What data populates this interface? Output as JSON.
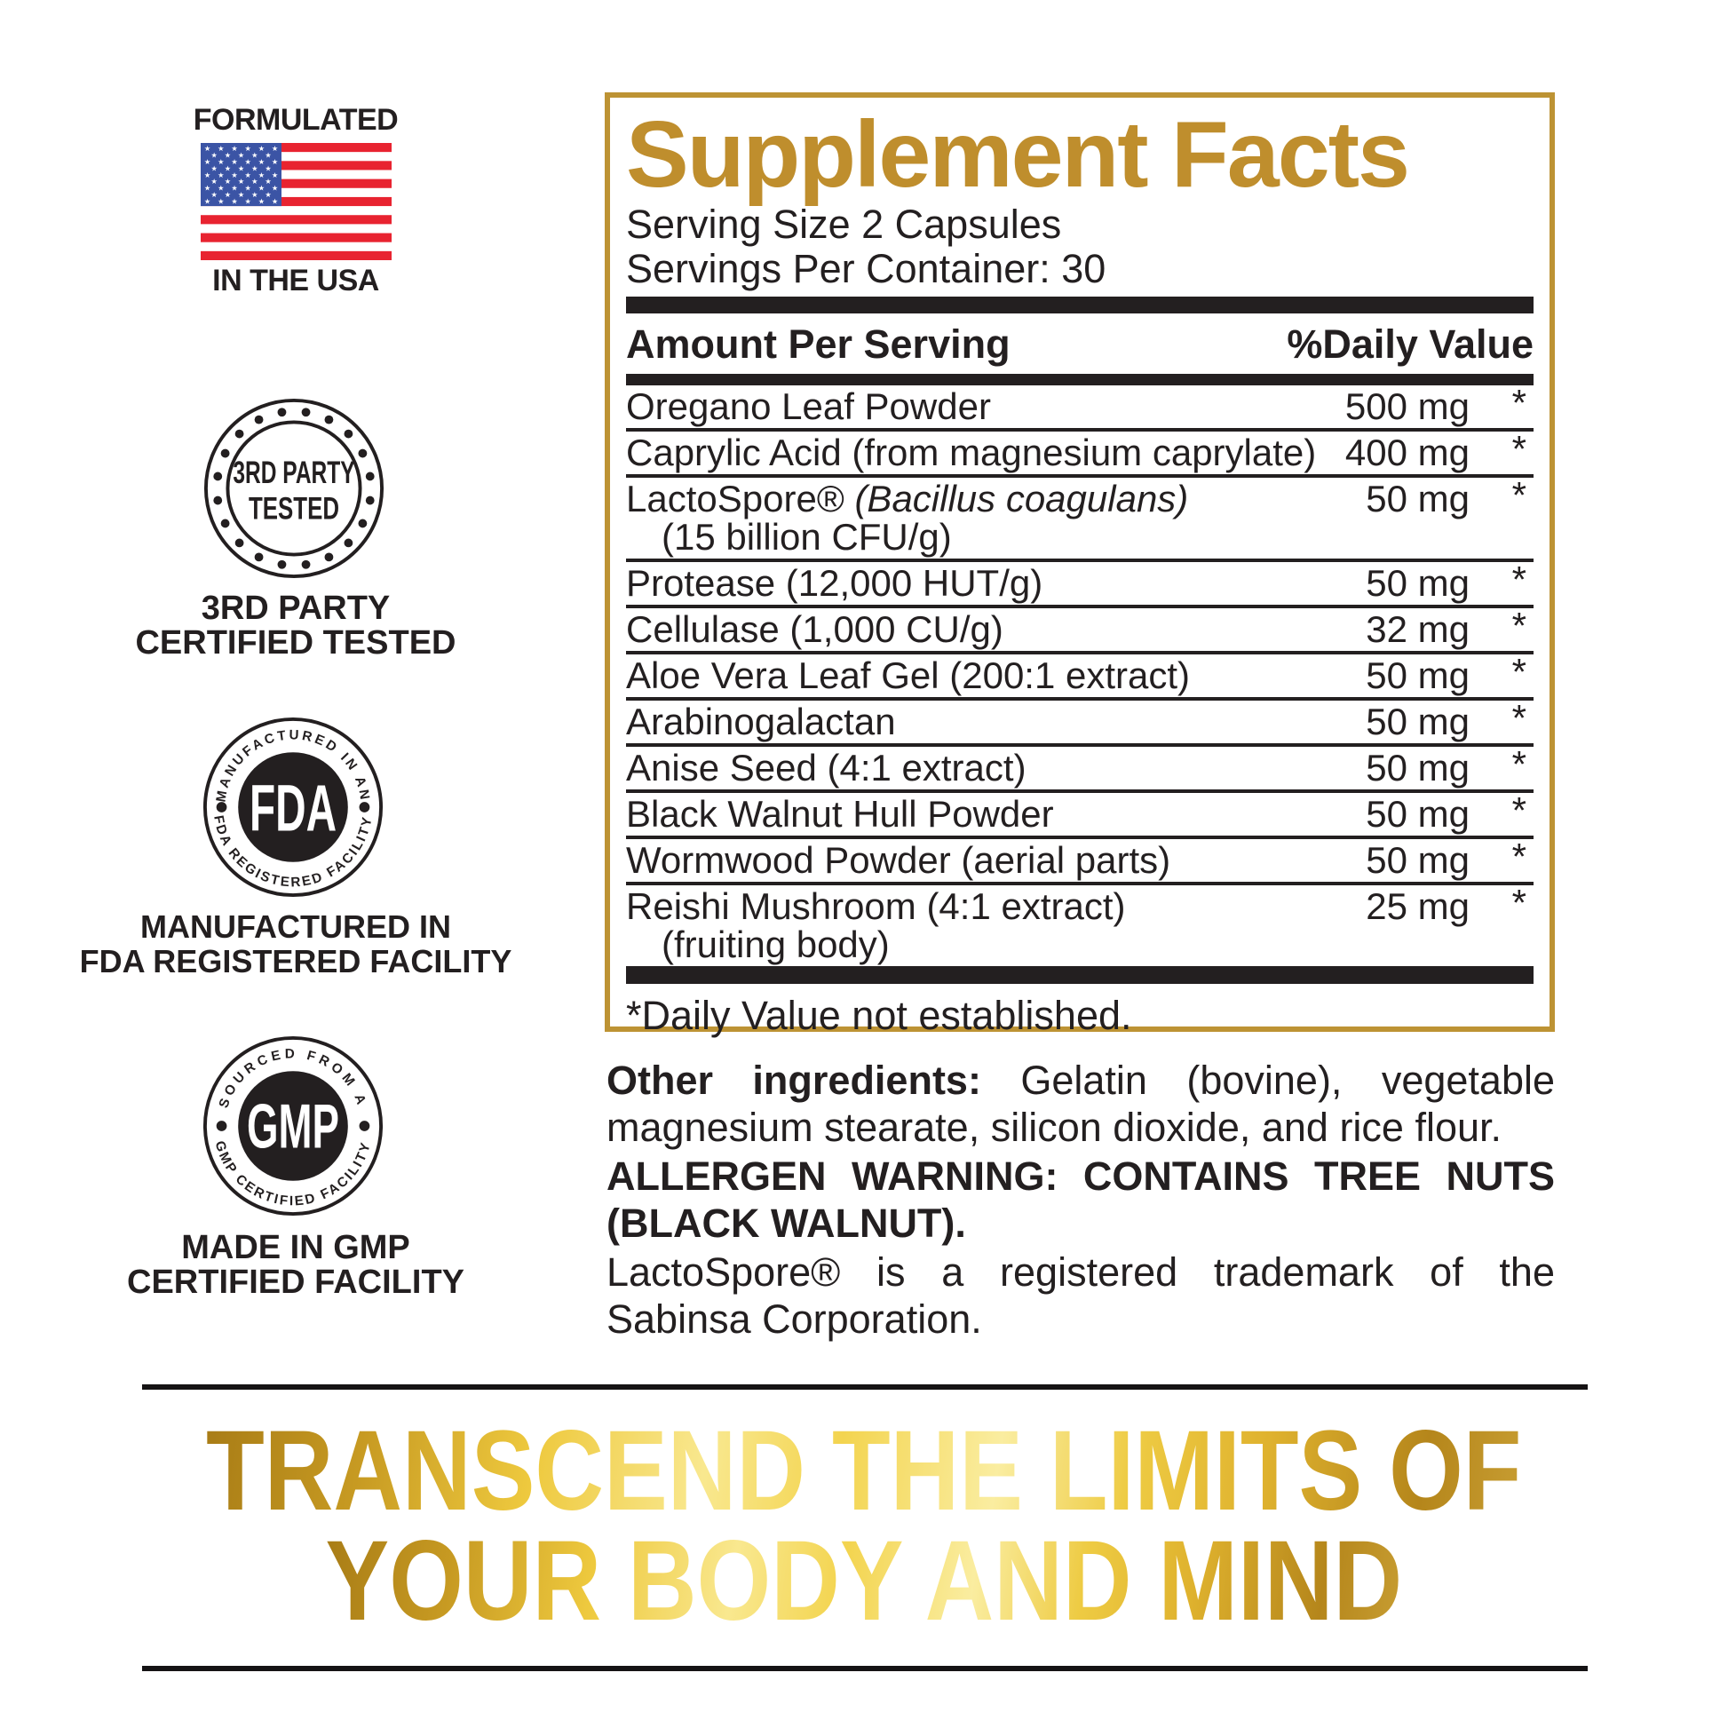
{
  "badges": {
    "flag": {
      "top": "FORMULATED",
      "bottom": "IN THE USA"
    },
    "tested": {
      "inner_line1": "3RD PARTY",
      "inner_line2": "TESTED",
      "caption_line1": "3RD PARTY",
      "caption_line2": "CERTIFIED TESTED"
    },
    "fda": {
      "arc_top": "MANUFACTURED IN AN",
      "center": "FDA",
      "arc_bottom": "FDA REGISTERED FACILITY",
      "caption_line1": "MANUFACTURED IN",
      "caption_line2": "FDA REGISTERED FACILITY"
    },
    "gmp": {
      "arc_top": "SOURCED FROM A",
      "center": "GMP",
      "arc_bottom": "GMP CERTIFIED FACILITY",
      "caption_line1": "MADE IN GMP",
      "caption_line2": "CERTIFIED FACILITY"
    }
  },
  "facts": {
    "title": "Supplement Facts",
    "serving_size": "Serving Size 2 Capsules",
    "servings_per_container": "Servings Per Container: 30",
    "col_left": "Amount Per Serving",
    "col_right": "%Daily Value",
    "rows": [
      {
        "name": "Oregano Leaf Powder",
        "amount": "500 mg",
        "dv": "*"
      },
      {
        "name": "Caprylic Acid (from magnesium caprylate)",
        "amount": "400 mg",
        "dv": "*"
      },
      {
        "name": "LactoSpore®",
        "name_italic": "(Bacillus coagulans)",
        "name2": "(15 billion CFU/g)",
        "amount": "50 mg",
        "dv": "*"
      },
      {
        "name": "Protease (12,000 HUT/g)",
        "amount": "50 mg",
        "dv": "*"
      },
      {
        "name": "Cellulase (1,000 CU/g)",
        "amount": "32 mg",
        "dv": "*"
      },
      {
        "name": "Aloe Vera Leaf Gel (200:1 extract)",
        "amount": "50 mg",
        "dv": "*"
      },
      {
        "name": "Arabinogalactan",
        "amount": "50 mg",
        "dv": "*"
      },
      {
        "name": "Anise Seed (4:1 extract)",
        "amount": "50 mg",
        "dv": "*"
      },
      {
        "name": "Black Walnut Hull Powder",
        "amount": "50 mg",
        "dv": "*"
      },
      {
        "name": "Wormwood Powder (aerial parts)",
        "amount": "50 mg",
        "dv": "*"
      },
      {
        "name": "Reishi Mushroom (4:1 extract)",
        "name2": "(fruiting body)",
        "amount": "25 mg",
        "dv": "*"
      }
    ],
    "footnote": "*Daily Value not established."
  },
  "paragraphs": {
    "other_ingredients_label": "Other ingredients:",
    "other_ingredients_text": " Gelatin (bovine), vegetable magnesium stearate, silicon dioxide, and rice flour.",
    "allergen": "ALLERGEN WARNING: CONTAINS TREE NUTS (BLACK WALNUT).",
    "trademark": "LactoSpore® is a registered trademark of the Sabinsa Corporation."
  },
  "tagline": {
    "line1": "TRANSCEND THE LIMITS OF",
    "line2": "YOUR BODY AND MIND"
  },
  "colors": {
    "gold_border": "#bd9334",
    "gold_title": "#bf8e2d",
    "flag_red": "#e82330",
    "flag_blue": "#3b54a5",
    "ink": "#231f20",
    "tagline_gold_dark": "#a87c16",
    "tagline_gold_light": "#f9e88f"
  }
}
